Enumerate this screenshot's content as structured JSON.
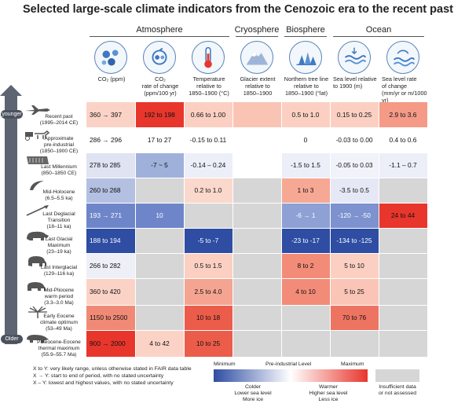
{
  "title": "Selected large-scale climate indicators from the Cenozoic era to the recent past",
  "groups": [
    {
      "name": "Atmosphere"
    },
    {
      "name": "Cryosphere"
    },
    {
      "name": "Biosphere"
    },
    {
      "name": "Ocean"
    }
  ],
  "columns": [
    {
      "label_lines": [
        "CO₂ (ppm)"
      ],
      "icon": "co2-molecules-icon"
    },
    {
      "label_lines": [
        "CO₂",
        "rate of change",
        "(ppm/100 yr)"
      ],
      "icon": "co2-rate-icon"
    },
    {
      "label_lines": [
        "Temperature",
        "relative to",
        "1850–1900 (°C)"
      ],
      "icon": "thermometer-icon"
    },
    {
      "label_lines": [
        "Glacier extent",
        "relative to",
        "1850–1900"
      ],
      "icon": "glacier-mountain-icon"
    },
    {
      "label_lines": [
        "Northern tree line",
        "relative to",
        "1850–1900 (°lat)"
      ],
      "icon": "tree-line-icon"
    },
    {
      "label_lines": [
        "Sea level relative",
        "to 1900 (m)"
      ],
      "icon": "sea-level-icon"
    },
    {
      "label_lines": [
        "Sea level rate",
        "of change",
        "(mm/yr or m/1000 yr)"
      ],
      "icon": "sea-level-rate-icon"
    }
  ],
  "rows": [
    {
      "label_lines": [
        "Recent past",
        "(1995–2014 CE)"
      ],
      "icon": "airplane-icon",
      "cells": [
        {
          "text": "360 → 397",
          "color": "#fbd3c6"
        },
        {
          "text": "192 to 198",
          "color": "#e8362d"
        },
        {
          "text": "0.66 to 1.00",
          "color": "#fbd0c3"
        },
        {
          "text": "",
          "color": "#f9c4b4"
        },
        {
          "text": "0.5 to 1.0",
          "color": "#fbd0c3"
        },
        {
          "text": "0.15 to 0.25",
          "color": "#fbd0c3"
        },
        {
          "text": "2.9 to 3.6",
          "color": "#f49a86"
        }
      ]
    },
    {
      "label_lines": [
        "Approximate",
        "pre-industrial",
        "(1850–1900 CE)"
      ],
      "icon": "horse-carriage-icon",
      "cells": [
        {
          "text": "286 → 296",
          "color": "#ffffff"
        },
        {
          "text": "17 to 27",
          "color": "#ffffff"
        },
        {
          "text": "-0.15 to 0.11",
          "color": "#ffffff"
        },
        {
          "text": "",
          "color": "#ffffff"
        },
        {
          "text": "0",
          "color": "#ffffff"
        },
        {
          "text": "-0.03 to 0.00",
          "color": "#ffffff"
        },
        {
          "text": "0.4 to 0.6",
          "color": "#ffffff"
        }
      ]
    },
    {
      "label_lines": [
        "Last Millennium",
        "(850–1850 CE)"
      ],
      "icon": "scroll-icon",
      "cells": [
        {
          "text": "278 to 285",
          "color": "#dfe3f2"
        },
        {
          "text": "-7 ~ 5",
          "color": "#9fb0da"
        },
        {
          "text": "-0.14 – 0.24",
          "color": "#eceff8"
        },
        {
          "text": "",
          "color": "#ffffff"
        },
        {
          "text": "-1.5 to 1.5",
          "color": "#eceff8"
        },
        {
          "text": "-0.05 to 0.03",
          "color": "#f1f3fa"
        },
        {
          "text": "-1.1 – 0.7",
          "color": "#eceff8"
        }
      ]
    },
    {
      "label_lines": [
        "Mid-Holocene",
        "(6.5–5.5 ka)"
      ],
      "icon": "sickle-icon",
      "cells": [
        {
          "text": "260 to 268",
          "color": "#b3c0e2"
        },
        {
          "text": "",
          "color": "#d6d6d6"
        },
        {
          "text": "0.2 to 1.0",
          "color": "#fbd8cc"
        },
        {
          "text": "",
          "color": "#d6d6d6"
        },
        {
          "text": "1 to 3",
          "color": "#f6a895"
        },
        {
          "text": "-3.5 to 0.5",
          "color": "#e6e9f5"
        },
        {
          "text": "",
          "color": "#d6d6d6"
        }
      ]
    },
    {
      "label_lines": [
        "Last Deglacial",
        "Transition",
        "(18–11 ka)"
      ],
      "icon": "spear-icon",
      "cells": [
        {
          "text": "193 → 271",
          "color": "#6e86c9",
          "white": true
        },
        {
          "text": "10",
          "color": "#6e86c9",
          "white": true
        },
        {
          "text": "",
          "color": "#d6d6d6"
        },
        {
          "text": "",
          "color": "#d6d6d6"
        },
        {
          "text": "-6 → 1",
          "color": "#8ea0d4",
          "white": true
        },
        {
          "text": "-120 → -50",
          "color": "#7d92ce",
          "white": true
        },
        {
          "text": "24 to 44",
          "color": "#e8362d"
        }
      ]
    },
    {
      "label_lines": [
        "Last Glacial",
        "Maximum",
        "(23–19 ka)"
      ],
      "icon": "bison-icon",
      "cells": [
        {
          "text": "188 to 194",
          "color": "#2e4da3",
          "white": true
        },
        {
          "text": "",
          "color": "#d6d6d6"
        },
        {
          "text": "-5 to -7",
          "color": "#2e4da3",
          "white": true
        },
        {
          "text": "",
          "color": "#d6d6d6"
        },
        {
          "text": "-23 to -17",
          "color": "#2e4da3",
          "white": true
        },
        {
          "text": "-134 to -125",
          "color": "#2e4da3",
          "white": true
        },
        {
          "text": "",
          "color": "#d6d6d6"
        }
      ]
    },
    {
      "label_lines": [
        "Last Interglacial",
        "(129–116 ka)"
      ],
      "icon": "mammoth-icon",
      "cells": [
        {
          "text": "266 to 282",
          "color": "#eef0f8"
        },
        {
          "text": "",
          "color": "#d6d6d6"
        },
        {
          "text": "0.5 to 1.5",
          "color": "#fbd0c3"
        },
        {
          "text": "",
          "color": "#d6d6d6"
        },
        {
          "text": "8 to 2",
          "color": "#f28c78"
        },
        {
          "text": "5 to 10",
          "color": "#fbd0c3"
        },
        {
          "text": "",
          "color": "#d6d6d6"
        }
      ]
    },
    {
      "label_lines": [
        "Mid-Pliocene",
        "warm period",
        "(3.3–3.0 Ma)"
      ],
      "icon": "mastodon-icon",
      "cells": [
        {
          "text": "360 to 420",
          "color": "#fbd3c6"
        },
        {
          "text": "",
          "color": "#d6d6d6"
        },
        {
          "text": "2.5 to 4.0",
          "color": "#f5a491"
        },
        {
          "text": "",
          "color": "#d6d6d6"
        },
        {
          "text": "4 to 10",
          "color": "#f28c78"
        },
        {
          "text": "5 to 25",
          "color": "#fac5b6"
        },
        {
          "text": "",
          "color": "#d6d6d6"
        }
      ]
    },
    {
      "label_lines": [
        "Early Eocene",
        "climate optimum",
        "(53–49 Ma)"
      ],
      "icon": "palm-icon",
      "cells": [
        {
          "text": "1150 to 2500",
          "color": "#f08a76"
        },
        {
          "text": "",
          "color": "#d6d6d6"
        },
        {
          "text": "10 to 18",
          "color": "#ec5c4a"
        },
        {
          "text": "",
          "color": "#d6d6d6"
        },
        {
          "text": "",
          "color": "#d6d6d6"
        },
        {
          "text": "70 to 76",
          "color": "#ee7462"
        },
        {
          "text": "",
          "color": "#d6d6d6"
        }
      ]
    },
    {
      "label_lines": [
        "Paleocene-Eocene",
        "thermal maximum",
        "(55.9–55.7 Ma)"
      ],
      "icon": "tapir-icon",
      "cells": [
        {
          "text": "900 → 2000",
          "color": "#e8362d"
        },
        {
          "text": "4 to 42",
          "color": "#fbd3c6"
        },
        {
          "text": "10 to 25",
          "color": "#ec5c4a"
        },
        {
          "text": "",
          "color": "#d6d6d6"
        },
        {
          "text": "",
          "color": "#d6d6d6"
        },
        {
          "text": "",
          "color": "#d6d6d6"
        },
        {
          "text": "",
          "color": "#d6d6d6"
        }
      ]
    }
  ],
  "axis": {
    "top": "younger",
    "bottom": "Older"
  },
  "notes": [
    "X to Y: very likely range, unless otherwise stated in FAIR data table",
    "X → Y: start to end of period, with no stated uncertainty",
    "X – Y: lowest and highest values, with no stated uncertainty"
  ],
  "legend": {
    "minimum": "Minimum",
    "preindustrial": "Pre-industrial Level",
    "maximum": "Maximum",
    "colder_lines": [
      "Colder",
      "Lower sea level",
      "More ice"
    ],
    "warmer_lines": [
      "Warmer",
      "Higher sea level",
      "Less ice"
    ],
    "insufficient_lines": [
      "Insufficient data",
      "or not assessed"
    ],
    "colors": {
      "min": "#2e4da3",
      "mid": "#ffffff",
      "max": "#e8362d",
      "na": "#d6d6d6"
    }
  },
  "chart_data": {
    "type": "table",
    "title": "Selected large-scale climate indicators from the Cenozoic era to the recent past",
    "columns": [
      "CO2 (ppm)",
      "CO2 rate of change (ppm/100 yr)",
      "Temperature relative to 1850–1900 (°C)",
      "Glacier extent relative to 1850–1900",
      "Northern tree line relative to 1850–1900 (°lat)",
      "Sea level relative to 1900 (m)",
      "Sea level rate of change (mm/yr or m/1000 yr)"
    ],
    "rows": [
      "Recent past",
      "Approximate pre-industrial",
      "Last Millennium",
      "Mid-Holocene",
      "Last Deglacial Transition",
      "Last Glacial Maximum",
      "Last Interglacial",
      "Mid-Pliocene warm period",
      "Early Eocene climate optimum",
      "Paleocene-Eocene thermal maximum"
    ]
  }
}
